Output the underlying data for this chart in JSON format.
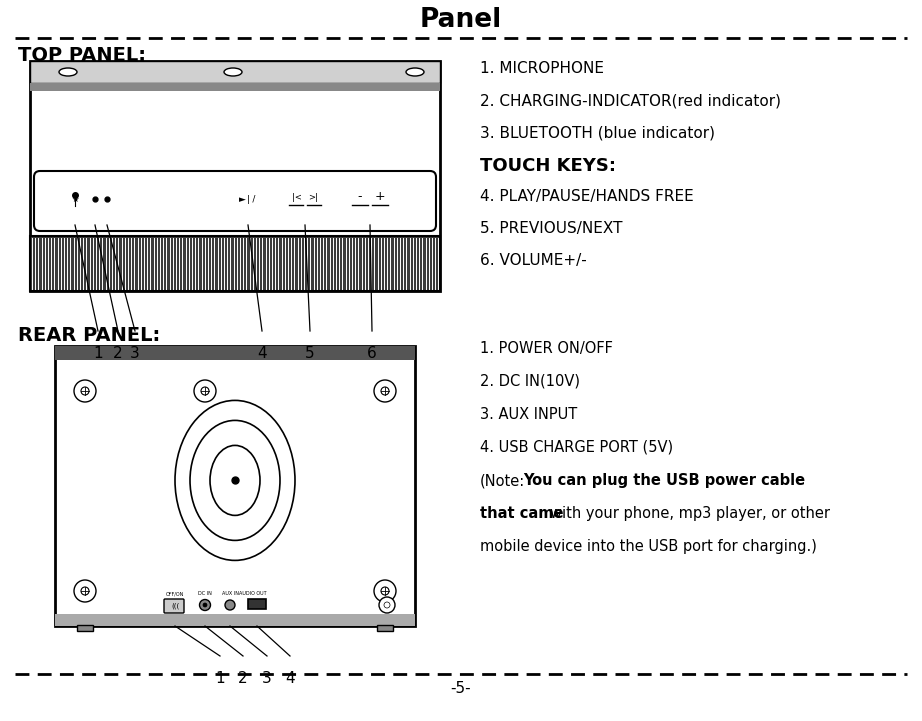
{
  "title": "Panel",
  "page_num": "-5-",
  "top_panel_label": "TOP PANEL:",
  "rear_panel_label": "REAR PANEL:",
  "top_right_lines": [
    [
      "1. MICROPHONE",
      "normal"
    ],
    [
      "2. CHARGING-INDICATOR(red indicator)",
      "normal"
    ],
    [
      "3. BLUETOOTH (blue indicator)",
      "normal"
    ],
    [
      "TOUCH KEYS:",
      "bold"
    ],
    [
      "4. PLAY/PAUSE/HANDS FREE",
      "normal"
    ],
    [
      "5. PREVIOUS/NEXT",
      "normal"
    ],
    [
      "6. VOLUME+/-",
      "normal"
    ]
  ],
  "rear_right_lines": [
    [
      "1. POWER ON/OFF",
      "normal"
    ],
    [
      "2. DC IN(10V)",
      "normal"
    ],
    [
      "3. AUX INPUT",
      "normal"
    ],
    [
      "4. USB CHARGE PORT (5V)",
      "normal"
    ],
    [
      "(Note:You can plug the USB power cable",
      "normal"
    ],
    [
      "that came with your phone, mp3 player, or other",
      "normal"
    ],
    [
      "mobile device into the USB port for charging.)",
      "normal"
    ]
  ],
  "bg_color": "#ffffff",
  "text_color": "#000000"
}
